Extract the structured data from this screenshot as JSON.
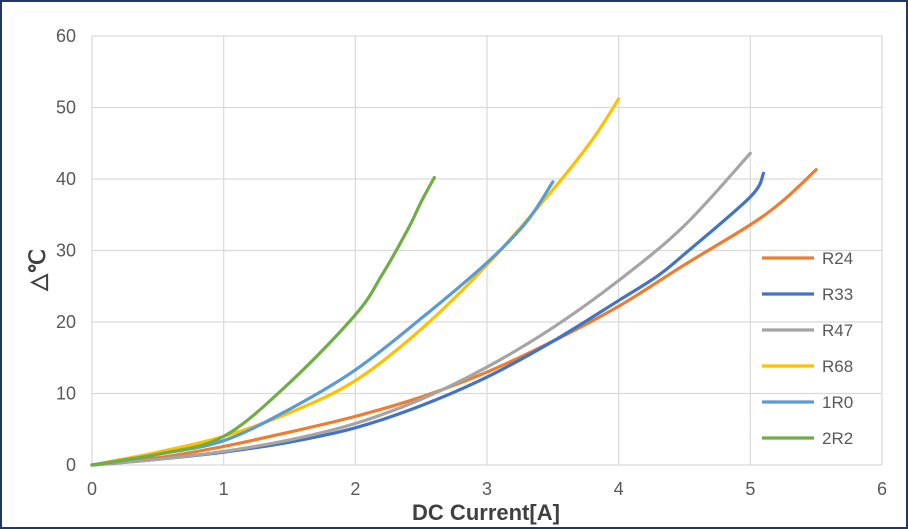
{
  "chart_data": {
    "type": "line",
    "title": "",
    "xlabel": "DC Current[A]",
    "ylabel": "△℃",
    "xlim": [
      0,
      6
    ],
    "ylim": [
      0,
      60
    ],
    "x_ticks": [
      "0",
      "1",
      "2",
      "3",
      "4",
      "5",
      "6"
    ],
    "y_ticks": [
      "0",
      "10",
      "20",
      "30",
      "40",
      "50",
      "60"
    ],
    "grid": true,
    "legend_position": "right",
    "series": [
      {
        "name": "R24",
        "color": "#ED7D31",
        "points": [
          [
            0,
            0
          ],
          [
            0.5,
            1.0
          ],
          [
            1,
            2.6
          ],
          [
            1.5,
            4.6
          ],
          [
            2,
            6.8
          ],
          [
            2.5,
            9.5
          ],
          [
            3,
            13
          ],
          [
            3.5,
            17.3
          ],
          [
            4,
            22.2
          ],
          [
            4.5,
            28
          ],
          [
            5,
            33.6
          ],
          [
            5.25,
            37
          ],
          [
            5.5,
            41.3
          ]
        ]
      },
      {
        "name": "R33",
        "color": "#4472C4",
        "points": [
          [
            0,
            0
          ],
          [
            0.5,
            0.8
          ],
          [
            1,
            1.8
          ],
          [
            1.5,
            3.2
          ],
          [
            2,
            5.2
          ],
          [
            2.5,
            8.3
          ],
          [
            3,
            12.3
          ],
          [
            3.5,
            17.3
          ],
          [
            4,
            23
          ],
          [
            4.3,
            26.5
          ],
          [
            4.5,
            29.5
          ],
          [
            5,
            37.5
          ],
          [
            5.1,
            40.8
          ]
        ]
      },
      {
        "name": "R47",
        "color": "#A5A5A5",
        "points": [
          [
            0,
            0
          ],
          [
            0.5,
            0.8
          ],
          [
            1,
            1.9
          ],
          [
            1.5,
            3.5
          ],
          [
            2,
            5.8
          ],
          [
            2.5,
            9.2
          ],
          [
            3,
            13.7
          ],
          [
            3.5,
            19.2
          ],
          [
            4,
            25.8
          ],
          [
            4.5,
            33.5
          ],
          [
            5,
            43.6
          ]
        ]
      },
      {
        "name": "R68",
        "color": "#FFC000",
        "points": [
          [
            0,
            0
          ],
          [
            0.5,
            1.8
          ],
          [
            1,
            4
          ],
          [
            1.5,
            7.3
          ],
          [
            2,
            11.8
          ],
          [
            2.5,
            19
          ],
          [
            3,
            28
          ],
          [
            3.5,
            38.5
          ],
          [
            3.8,
            45.5
          ],
          [
            4,
            51.2
          ]
        ]
      },
      {
        "name": "1R0",
        "color": "#5B9BD5",
        "points": [
          [
            0,
            0
          ],
          [
            0.5,
            1.5
          ],
          [
            1,
            3.4
          ],
          [
            1.5,
            7.8
          ],
          [
            2,
            13.3
          ],
          [
            2.5,
            20.5
          ],
          [
            3,
            28.3
          ],
          [
            3.3,
            34
          ],
          [
            3.5,
            39.6
          ]
        ]
      },
      {
        "name": "2R2",
        "color": "#70AD47",
        "points": [
          [
            0,
            0
          ],
          [
            0.5,
            1.5
          ],
          [
            1,
            4
          ],
          [
            1.5,
            11.5
          ],
          [
            2,
            21
          ],
          [
            2.2,
            26.5
          ],
          [
            2.4,
            33
          ],
          [
            2.5,
            36.8
          ],
          [
            2.6,
            40.2
          ]
        ]
      }
    ]
  }
}
